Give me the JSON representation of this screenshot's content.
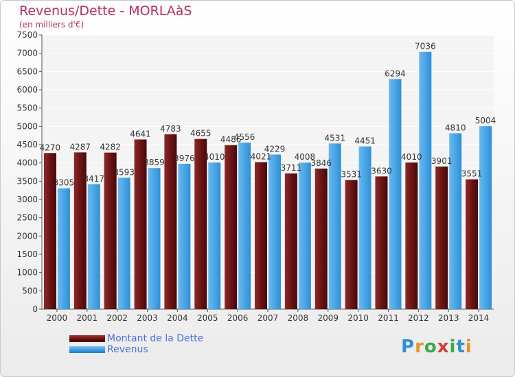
{
  "title": "Revenus/Dette - MORLAàS",
  "subtitle": "(en milliers d'€)",
  "colors": {
    "dette": "#6b0f0f",
    "revenus": "#3b9ce0",
    "title": "#b03060",
    "legend_text": "#4a6fdc"
  },
  "legend": {
    "dette": "Montant de la Dette",
    "revenus": "Revenus"
  },
  "logo": {
    "text": "Proxiti",
    "letters": [
      "P",
      "r",
      "o",
      "x",
      "i",
      "t",
      "i"
    ]
  },
  "chart_data": {
    "type": "bar",
    "title": "Revenus/Dette - MORLAàS",
    "subtitle": "(en milliers d'€)",
    "categories": [
      "2000",
      "2001",
      "2002",
      "2003",
      "2004",
      "2005",
      "2006",
      "2007",
      "2008",
      "2009",
      "2010",
      "2011",
      "2012",
      "2013",
      "2014"
    ],
    "series": [
      {
        "name": "Montant de la Dette",
        "values": [
          4270,
          4287,
          4282,
          4641,
          4783,
          4655,
          4486,
          4021,
          3711,
          3846,
          3531,
          3630,
          4010,
          3901,
          3551
        ]
      },
      {
        "name": "Revenus",
        "values": [
          3305,
          3417,
          3593,
          3859,
          3976,
          4010,
          4556,
          4229,
          4008,
          4531,
          4451,
          6294,
          7036,
          4810,
          5004
        ]
      }
    ],
    "value_labels": {
      "dette": [
        "4270",
        "4287",
        "4282",
        "4641",
        "4783",
        "4655",
        "4486",
        "4021",
        "3711",
        "3846",
        "3531",
        "3630",
        "4010",
        "3901",
        "3551"
      ],
      "revenus": [
        "3305",
        "3417",
        "3593",
        "3859",
        "3976",
        "4010",
        "4556",
        "4229",
        "4008",
        "4531",
        "4451",
        "6294",
        "7036",
        "4810",
        "5004"
      ]
    },
    "ylim": [
      0,
      7500
    ],
    "yticks": [
      "0",
      "500",
      "1000",
      "1500",
      "2000",
      "2500",
      "3000",
      "3500",
      "4000",
      "4500",
      "5000",
      "5500",
      "6000",
      "6500",
      "7000",
      "7500"
    ],
    "grid": true,
    "legend_position": "bottom-left"
  }
}
